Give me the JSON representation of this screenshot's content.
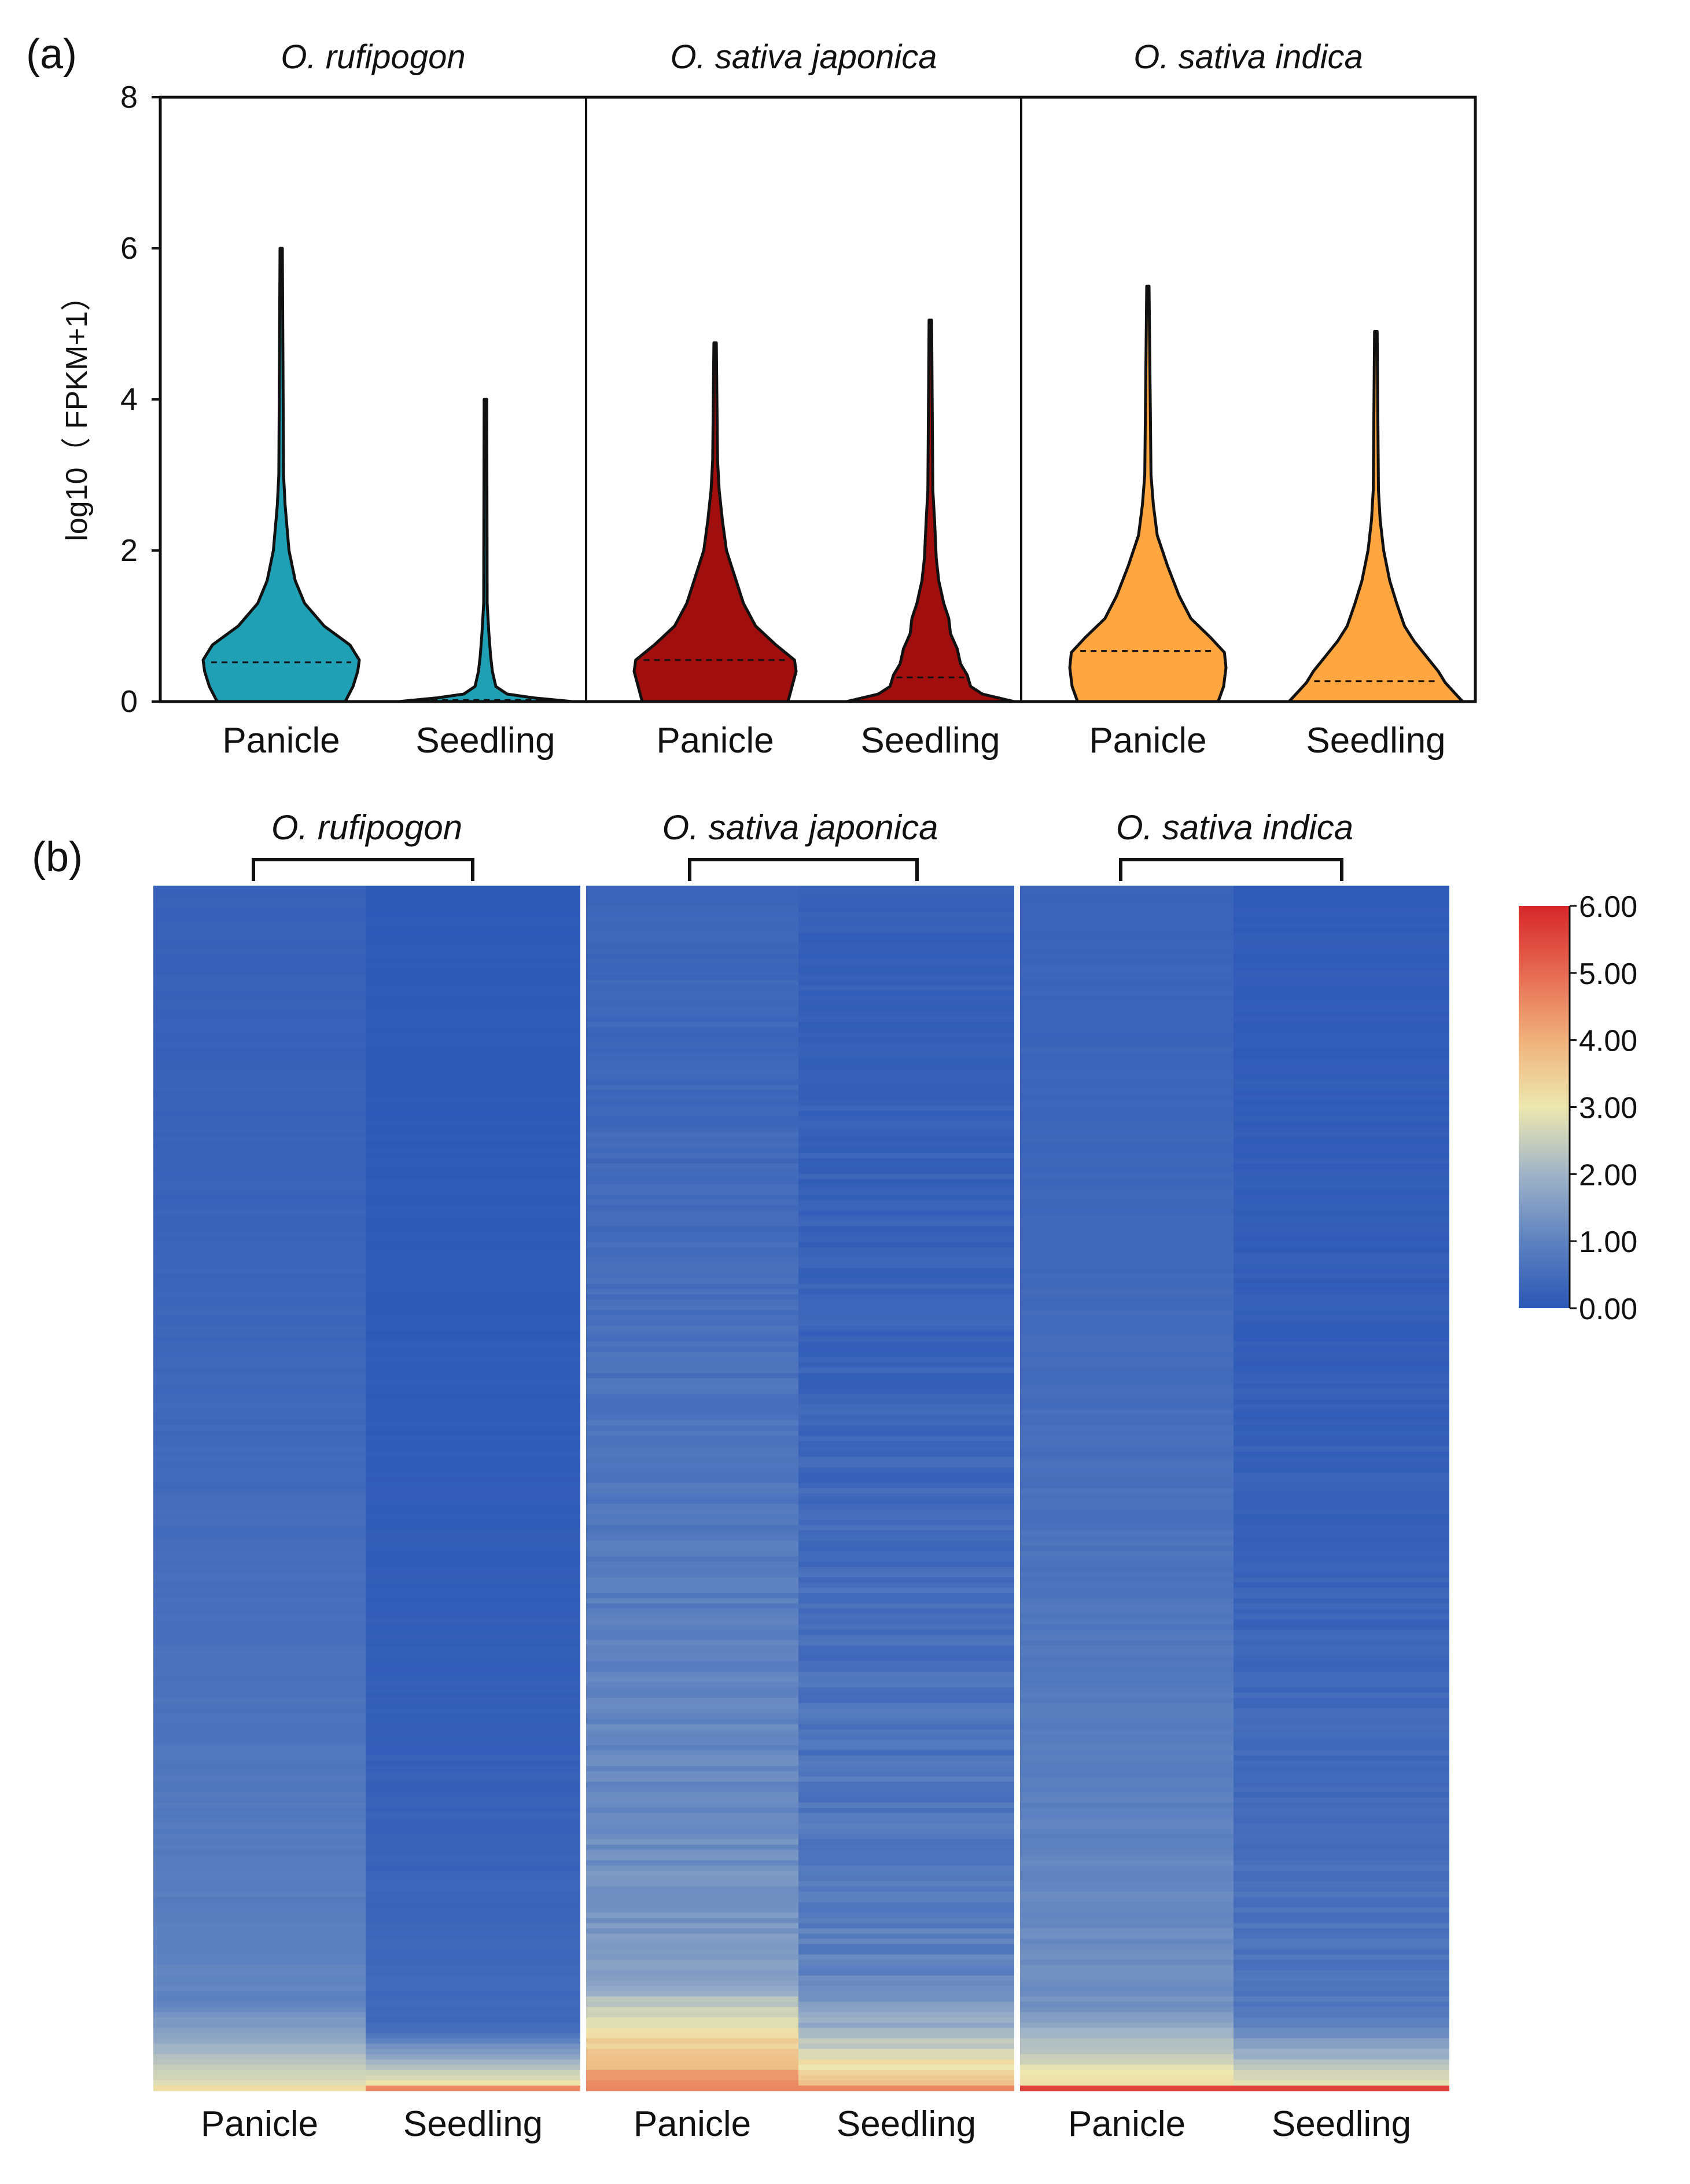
{
  "chart_data": [
    {
      "panel_label": "(a)",
      "type": "violin",
      "ylabel": "log10（ FPKM+1）",
      "ylim": [
        0,
        8
      ],
      "yticks": [
        "0",
        "2",
        "4",
        "6",
        "8"
      ],
      "groups": [
        {
          "name": "O. rufipogon",
          "color": "#1FA0B5",
          "violins": [
            {
              "category": "Panicle",
              "median": 0.52,
              "max": 6.0
            },
            {
              "category": "Seedling",
              "median": 0.02,
              "max": 4.0
            }
          ]
        },
        {
          "name": "O. sativa japonica",
          "color": "#A10E0E",
          "violins": [
            {
              "category": "Panicle",
              "median": 0.55,
              "max": 4.75
            },
            {
              "category": "Seedling",
              "median": 0.32,
              "max": 5.05
            }
          ]
        },
        {
          "name": "O. sativa indica",
          "color": "#FFA640",
          "violins": [
            {
              "category": "Panicle",
              "median": 0.67,
              "max": 5.5
            },
            {
              "category": "Seedling",
              "median": 0.27,
              "max": 4.9
            }
          ]
        }
      ]
    },
    {
      "panel_label": "(b)",
      "type": "heatmap",
      "groups": [
        "O. rufipogon",
        "O. sativa japonica",
        "O. sativa indica"
      ],
      "columns": [
        "Panicle",
        "Seedling",
        "Panicle",
        "Seedling",
        "Panicle",
        "Seedling"
      ],
      "colorbar": {
        "min": 0,
        "max": 6,
        "ticks": [
          "0.00",
          "1.00",
          "2.00",
          "3.00",
          "4.00",
          "5.00",
          "6.00"
        ],
        "colors": [
          "#2B57B7",
          "#5E82C0",
          "#9FB3C7",
          "#EEE8B0",
          "#F0B07A",
          "#E66A52",
          "#D7262A"
        ]
      }
    }
  ]
}
